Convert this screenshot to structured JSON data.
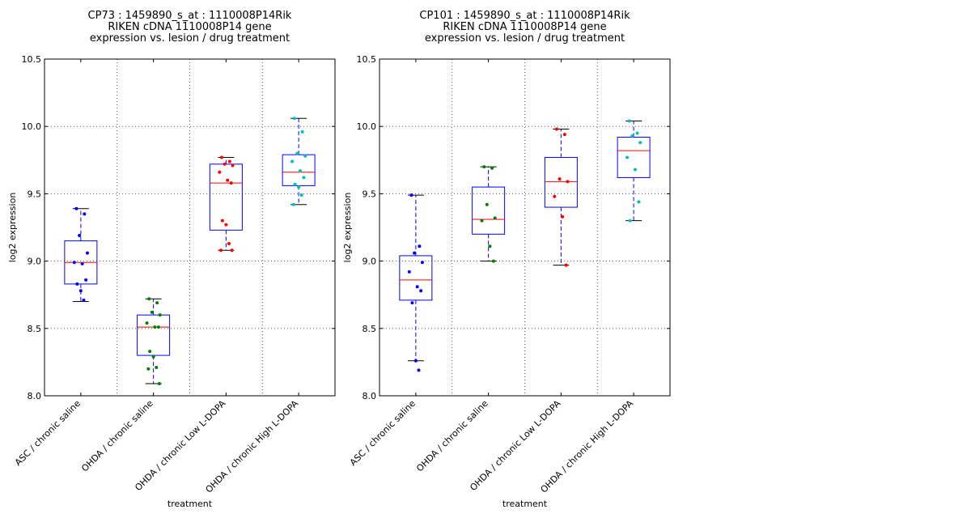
{
  "chart_data": [
    {
      "type": "box",
      "title_lines": [
        "CP73 : 1459890_s_at : 1110008P14Rik",
        "RIKEN cDNA 1110008P14 gene",
        "expression vs. lesion / drug treatment"
      ],
      "xlabel": "treatment",
      "ylabel": "log2 expression",
      "ylim": [
        8.0,
        10.5
      ],
      "yticks": [
        "8.0",
        "8.5",
        "9.0",
        "9.5",
        "10.0",
        "10.5"
      ],
      "grid": true,
      "categories": [
        "ASC / chronic saline",
        "OHDA / chronic saline",
        "OHDA / chronic Low L-DOPA",
        "OHDA / chronic High L-DOPA"
      ],
      "groups": [
        {
          "color": "#0000ff",
          "box": {
            "whisker_low": 8.7,
            "q1": 8.83,
            "median": 8.99,
            "q3": 9.15,
            "whisker_high": 9.39
          },
          "points": [
            9.39,
            9.35,
            9.19,
            9.06,
            8.99,
            8.98,
            8.86,
            8.83,
            8.78,
            8.71
          ]
        },
        {
          "color": "#008000",
          "box": {
            "whisker_low": 8.09,
            "q1": 8.3,
            "median": 8.51,
            "q3": 8.6,
            "whisker_high": 8.72
          },
          "points": [
            8.72,
            8.69,
            8.62,
            8.6,
            8.54,
            8.51,
            8.51,
            8.33,
            8.29,
            8.21,
            8.2,
            8.09
          ]
        },
        {
          "color": "#ff0000",
          "box": {
            "whisker_low": 9.08,
            "q1": 9.23,
            "median": 9.58,
            "q3": 9.72,
            "whisker_high": 9.77
          },
          "points": [
            9.77,
            9.74,
            9.72,
            9.71,
            9.66,
            9.6,
            9.58,
            9.3,
            9.27,
            9.13,
            9.08,
            9.08
          ]
        },
        {
          "color": "#00bfbf",
          "box": {
            "whisker_low": 9.42,
            "q1": 9.56,
            "median": 9.66,
            "q3": 9.79,
            "whisker_high": 10.06
          },
          "points": [
            10.06,
            9.96,
            9.8,
            9.78,
            9.74,
            9.67,
            9.62,
            9.57,
            9.55,
            9.49,
            9.42
          ]
        }
      ]
    },
    {
      "type": "box",
      "title_lines": [
        "CP101 : 1459890_s_at : 1110008P14Rik",
        "RIKEN cDNA 1110008P14 gene",
        "expression vs. lesion / drug treatment"
      ],
      "xlabel": "treatment",
      "ylabel": "log2 expression",
      "ylim": [
        8.0,
        10.5
      ],
      "yticks": [
        "8.0",
        "8.5",
        "9.0",
        "9.5",
        "10.0",
        "10.5"
      ],
      "grid": true,
      "categories": [
        "ASC / chronic saline",
        "OHDA / chronic saline",
        "OHDA / chronic Low L-DOPA",
        "OHDA / chronic High L-DOPA"
      ],
      "groups": [
        {
          "color": "#0000ff",
          "box": {
            "whisker_low": 8.26,
            "q1": 8.71,
            "median": 8.86,
            "q3": 9.04,
            "whisker_high": 9.49
          },
          "points": [
            9.49,
            9.11,
            9.06,
            8.99,
            8.92,
            8.81,
            8.78,
            8.69,
            8.26,
            8.19
          ]
        },
        {
          "color": "#008000",
          "box": {
            "whisker_low": 9.0,
            "q1": 9.2,
            "median": 9.31,
            "q3": 9.55,
            "whisker_high": 9.7
          },
          "points": [
            9.7,
            9.69,
            9.42,
            9.32,
            9.3,
            9.11,
            9.0
          ]
        },
        {
          "color": "#ff0000",
          "box": {
            "whisker_low": 8.97,
            "q1": 9.4,
            "median": 9.59,
            "q3": 9.77,
            "whisker_high": 9.98
          },
          "points": [
            9.98,
            9.94,
            9.61,
            9.59,
            9.48,
            9.33,
            8.97
          ]
        },
        {
          "color": "#00bfbf",
          "box": {
            "whisker_low": 9.3,
            "q1": 9.62,
            "median": 9.82,
            "q3": 9.92,
            "whisker_high": 10.04
          },
          "points": [
            10.04,
            9.95,
            9.93,
            9.88,
            9.77,
            9.68,
            9.44,
            9.3
          ]
        }
      ]
    }
  ]
}
